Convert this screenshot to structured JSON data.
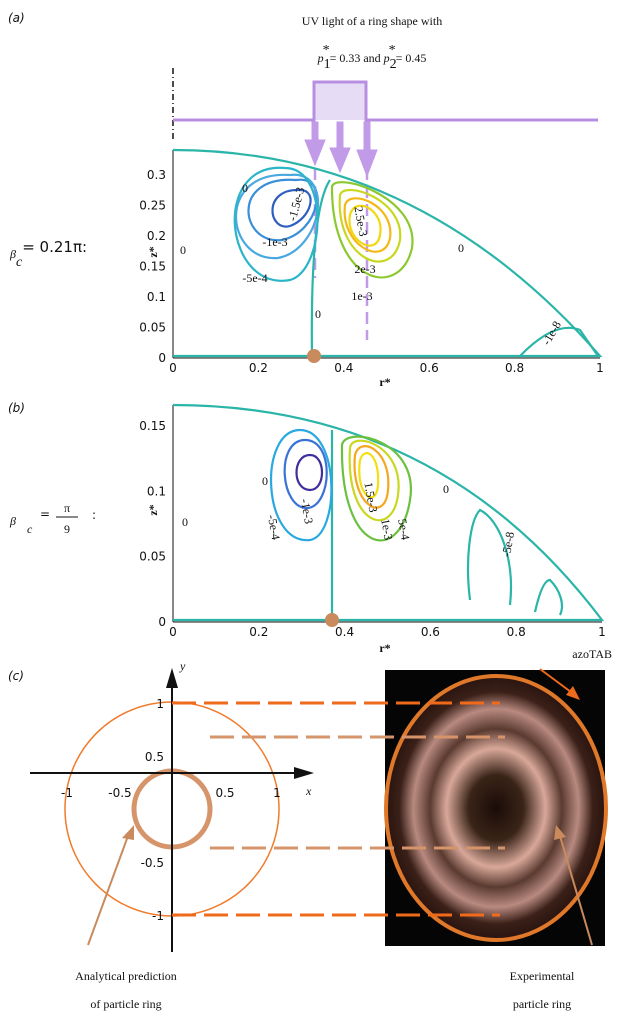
{
  "panel_a": {
    "label": "(a)",
    "title_line1": "UV light of a ring shape with",
    "title_line2": [
      "p",
      "1",
      "*",
      "= 0.33 and ",
      "p",
      "2",
      "*",
      "= 0.45"
    ],
    "beta": [
      "β",
      "c",
      "= 0.21π:"
    ],
    "y_axis": "z*",
    "x_axis": "r*",
    "xticks": [
      "0",
      "0.2",
      "0.4",
      "0.6",
      "0.8",
      "1"
    ],
    "yticks": [
      "0",
      "0.05",
      "0.1",
      "0.15",
      "0.2",
      "0.25",
      "0.3"
    ],
    "contours": [
      "0",
      "-1.5e-3",
      "-1e-3",
      "-5e-4",
      "0",
      "2.5e-3",
      "2e-3",
      "1e-3",
      "0",
      "0",
      "-1e-8"
    ]
  },
  "panel_b": {
    "label": "(b)",
    "beta": [
      "β",
      "c",
      "=",
      "π",
      "9",
      ":"
    ],
    "y_axis": "z*",
    "x_axis": "r*",
    "xticks": [
      "0",
      "0.2",
      "0.4",
      "0.6",
      "0.8",
      "1"
    ],
    "yticks": [
      "0",
      "0.05",
      "0.1",
      "0.15"
    ],
    "contours": [
      "0",
      "0",
      "-1e-3",
      "-5e-4",
      "1.5e-3",
      "1e-3",
      "5e-4",
      "0",
      "-5e-8"
    ]
  },
  "panel_c": {
    "label": "(c)",
    "y_axis": "y",
    "x_axis": "x",
    "yticks": [
      "1",
      "0.5",
      "-0.5",
      "-1"
    ],
    "xticks": [
      "-1",
      "-0.5",
      "0.5",
      "1"
    ],
    "image_label": "azoTAB",
    "left_caption": [
      "Analytical prediction",
      "of particle ring"
    ],
    "right_caption": [
      "Experimental",
      "particle ring"
    ]
  }
}
